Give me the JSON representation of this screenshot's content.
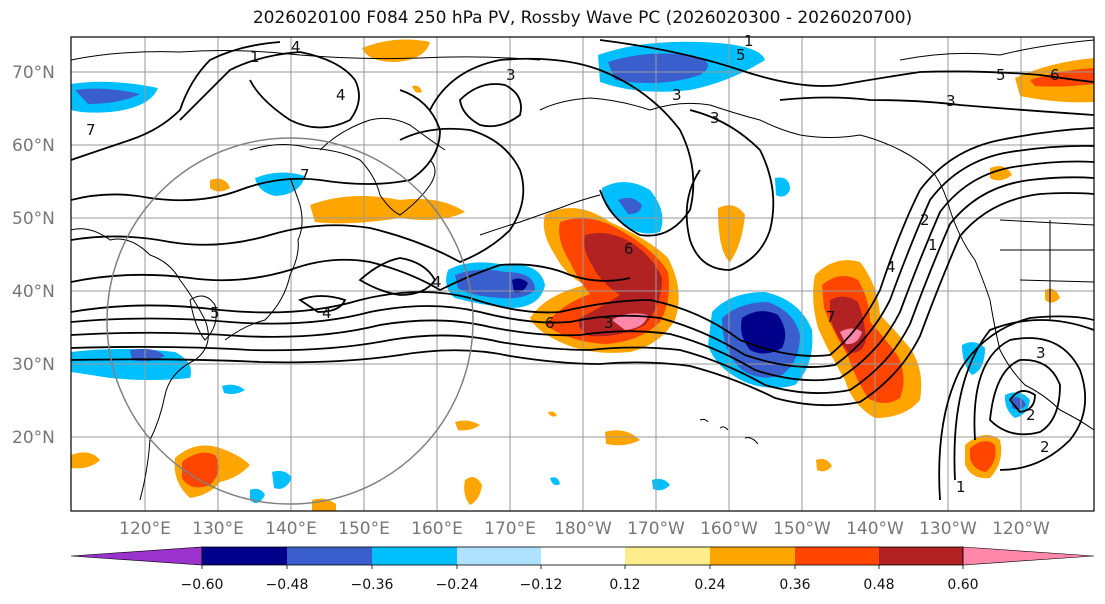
{
  "title": "2026020100 F084 250 hPa PV, Rossby Wave PC (2026020300 - 2026020700)",
  "lat_labels": [
    "70°N",
    "60°N",
    "50°N",
    "40°N",
    "30°N",
    "20°N"
  ],
  "lon_labels": [
    "120°E",
    "130°E",
    "140°E",
    "150°E",
    "160°E",
    "170°E",
    "180°W",
    "170°W",
    "160°W",
    "150°W",
    "140°W",
    "130°W",
    "120°W"
  ],
  "colorbar": {
    "colors": [
      "#9a32cd",
      "#00008b",
      "#3a5fcd",
      "#00bfff",
      "#b0e2ff",
      "#ffffff",
      "#ffec8b",
      "#ffa500",
      "#ff4500",
      "#b22222",
      "#ff88aa"
    ],
    "ticks": [
      "−0.60",
      "−0.48",
      "−0.36",
      "−0.24",
      "−0.12",
      "0.12",
      "0.24",
      "0.36",
      "0.48",
      "0.60"
    ]
  },
  "pv_contour_labels": [
    "4",
    "5",
    "4",
    "3",
    "6",
    "3",
    "6",
    "3",
    "4",
    "7",
    "3",
    "2",
    "1",
    "4",
    "5",
    "5",
    "6",
    "4",
    "7",
    "3",
    "7",
    "1",
    "2",
    "1",
    "3",
    "2",
    "1"
  ],
  "pc_anomalies": [
    {
      "label": "positive-anomaly-north-pacific",
      "sign": "+",
      "max_category": "0.60"
    },
    {
      "label": "positive-anomaly-gulf-of-alaska",
      "sign": "+",
      "max_category": "0.60"
    },
    {
      "label": "negative-anomaly-dateline",
      "sign": "−",
      "max_category": "−0.48"
    },
    {
      "label": "negative-anomaly-160w",
      "sign": "−",
      "max_category": "−0.48"
    }
  ]
}
